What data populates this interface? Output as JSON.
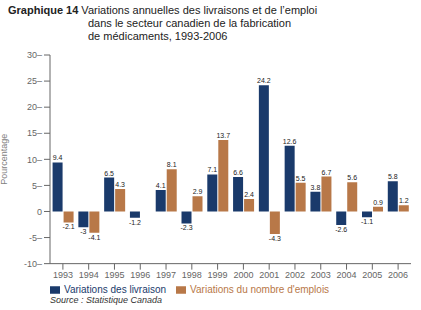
{
  "chart_data": {
    "type": "bar",
    "title": "Graphique 14",
    "subtitle": "Variations annuelles des livraisons et de l’emploi\ndans le secteur canadien de la fabrication\nde médicaments, 1993-2006",
    "ylabel": "Pourcentage",
    "annotations": [
      "Source : Statistique Canada"
    ],
    "categories": [
      "1993",
      "1994",
      "1995",
      "1996",
      "1997",
      "1998",
      "1999",
      "2000",
      "2001",
      "2002",
      "2003",
      "2004",
      "2005",
      "2006"
    ],
    "series": [
      {
        "name": "Variations des livraison",
        "color": "#1a3a6b",
        "values": [
          9.4,
          -3,
          6.5,
          -1.2,
          4.1,
          -2.3,
          7.1,
          6.6,
          24.2,
          12.6,
          3.8,
          -2.6,
          -1.1,
          5.8
        ]
      },
      {
        "name": "Variations du nombre d'emplois",
        "color": "#b87848",
        "values": [
          -2.1,
          -4.1,
          4.3,
          0,
          8.1,
          2.9,
          13.7,
          2.4,
          -4.3,
          5.5,
          6.7,
          5.6,
          0.9,
          1.2
        ]
      }
    ],
    "ylim": [
      -10,
      30
    ],
    "yticks": [
      {
        "value": -10,
        "label": "-10–"
      },
      {
        "value": -5,
        "label": "-5–"
      },
      0,
      {
        "value": 5,
        "label": "5–"
      },
      {
        "value": 10,
        "label": "10–"
      },
      {
        "value": 15,
        "label": "15–"
      },
      {
        "value": 20,
        "label": "20–"
      },
      {
        "value": 25,
        "label": "25–"
      },
      {
        "value": 30,
        "label": "30–"
      }
    ],
    "grid": false,
    "legend": "bottom",
    "data_labels": true
  }
}
